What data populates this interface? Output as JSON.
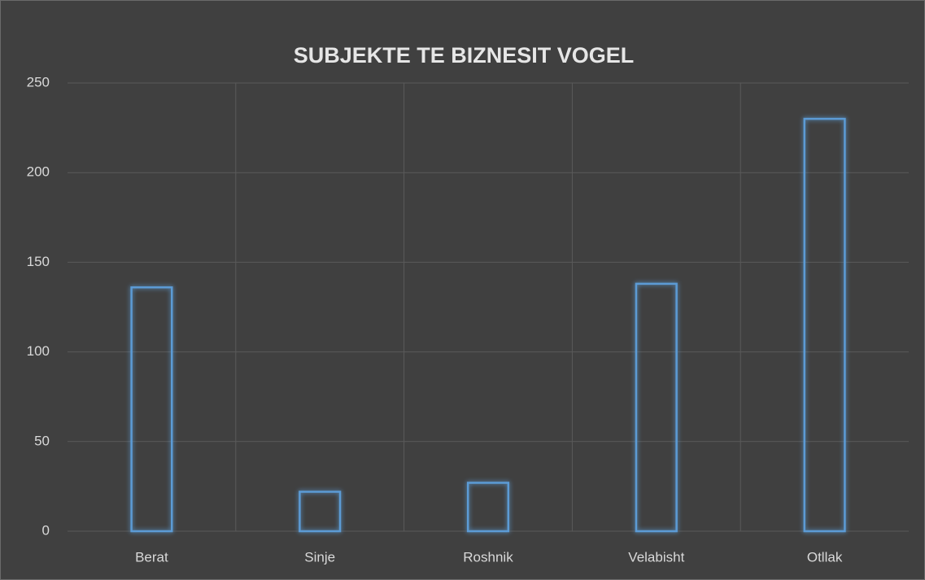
{
  "chart_data": {
    "type": "bar",
    "title": "SUBJEKTE TE BIZNESIT VOGEL",
    "categories": [
      "Berat",
      "Sinje",
      "Roshnik",
      "Velabisht",
      "Otllak"
    ],
    "values": [
      136,
      22,
      27,
      138,
      230
    ],
    "color": "#5b9bd5",
    "ylim": [
      0,
      250
    ],
    "yticks": [
      0,
      50,
      100,
      150,
      200,
      250
    ],
    "grid": true
  }
}
